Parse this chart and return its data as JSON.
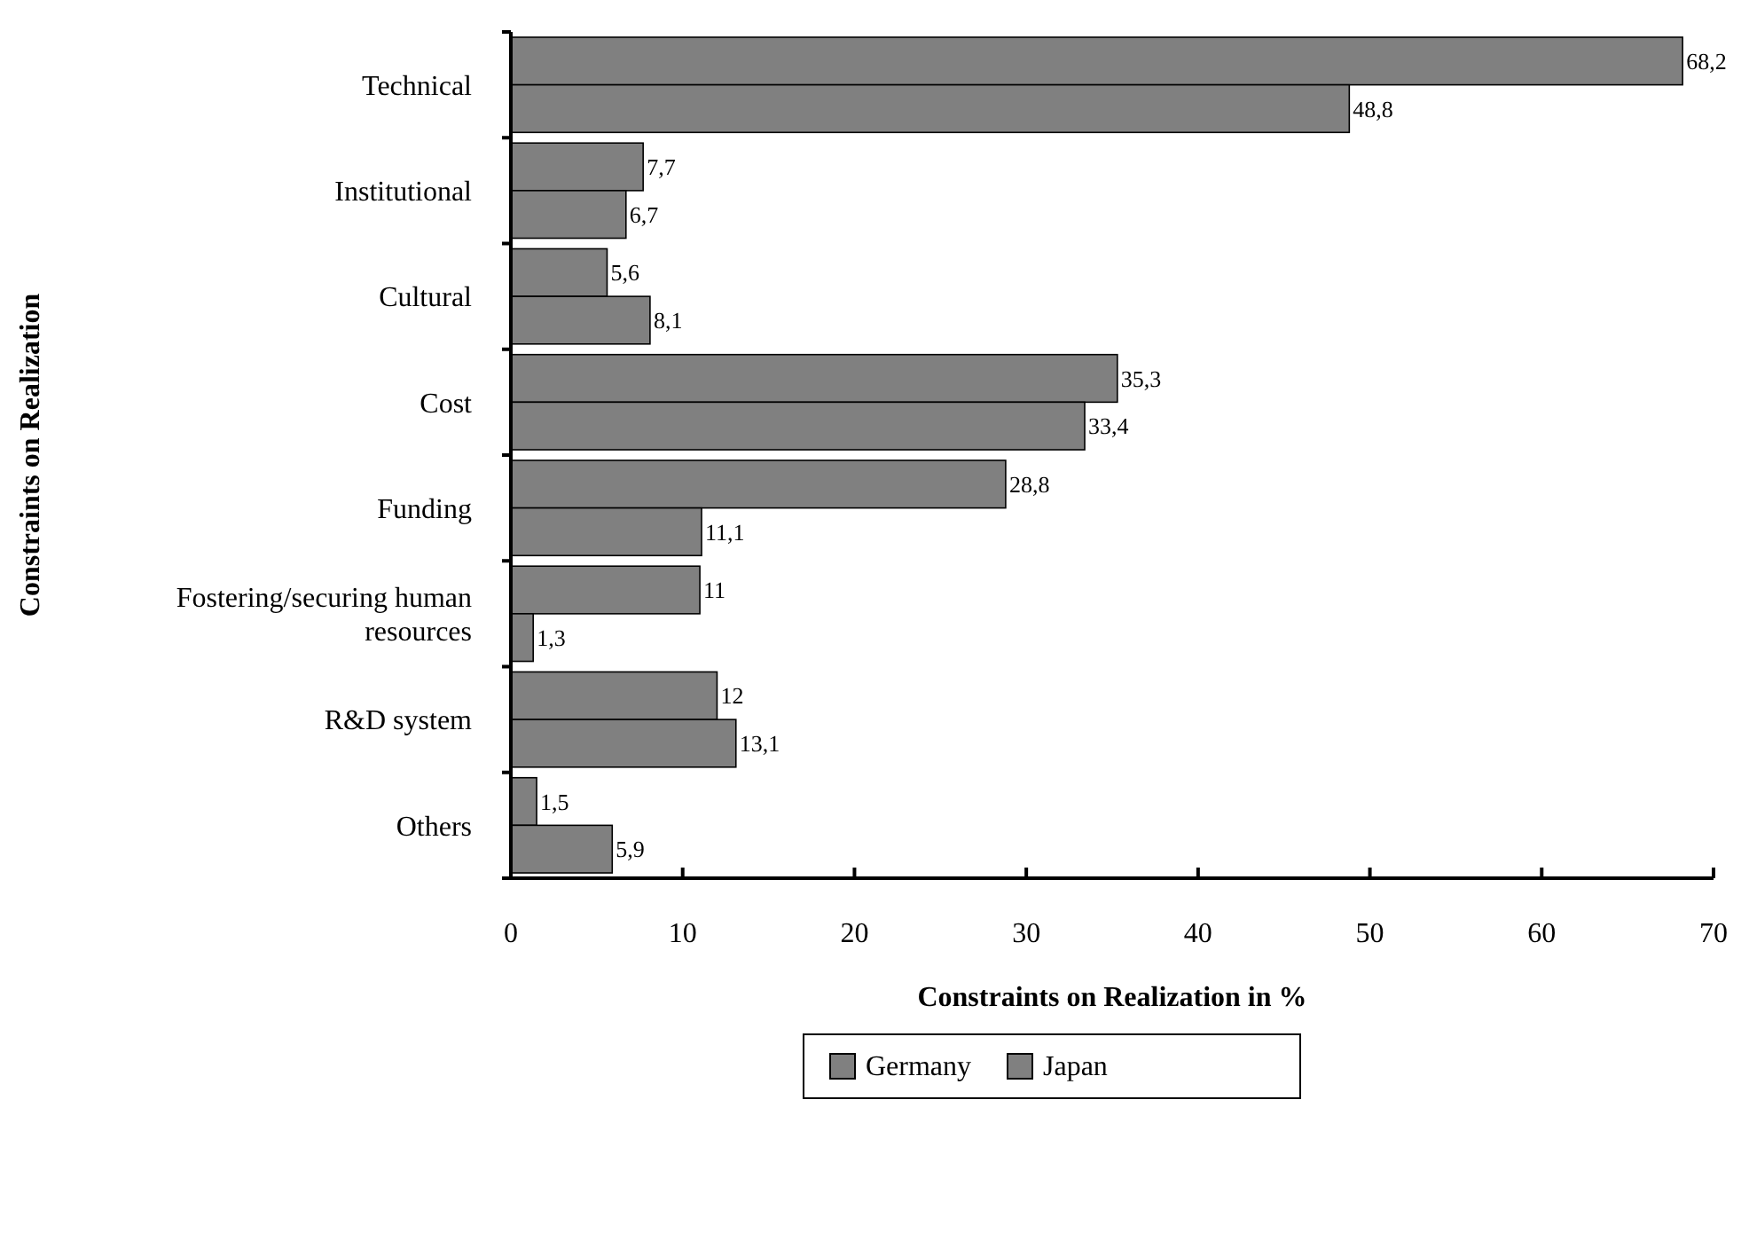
{
  "chart_data": {
    "type": "bar",
    "orientation": "horizontal",
    "xlabel": "Constraints on Realization in %",
    "ylabel": "Constraints on Realization",
    "categories": [
      "Technical",
      "Institutional",
      "Cultural",
      "Cost",
      "Funding",
      "Fostering/securing human resources",
      "R&D system",
      "Others"
    ],
    "series": [
      {
        "name": "Germany",
        "color": "#808080",
        "values": [
          68.2,
          7.7,
          5.6,
          35.3,
          28.8,
          11,
          12,
          1.5
        ],
        "value_labels": [
          "68,2",
          "7,7",
          "5,6",
          "35,3",
          "28,8",
          "11",
          "12",
          "1,5"
        ]
      },
      {
        "name": "Japan",
        "color": "#808080",
        "values": [
          48.8,
          6.7,
          8.1,
          33.4,
          11.1,
          1.3,
          13.1,
          5.9
        ],
        "value_labels": [
          "48,8",
          "6,7",
          "8,1",
          "33,4",
          "11,1",
          "1,3",
          "13,1",
          "5,9"
        ]
      }
    ],
    "xlim": [
      0,
      70
    ],
    "xticks": [
      0,
      10,
      20,
      30,
      40,
      50,
      60,
      70
    ],
    "grid": false,
    "legend": "bottom"
  }
}
